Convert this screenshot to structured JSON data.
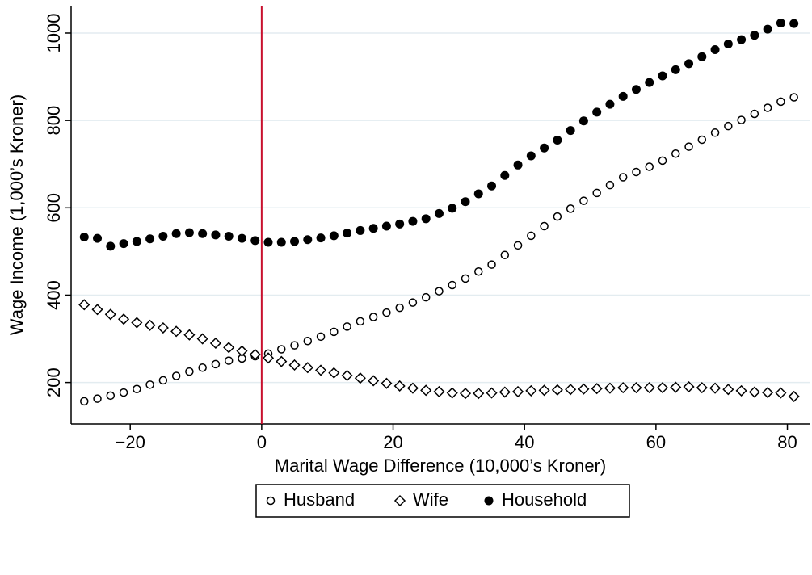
{
  "chart_data": {
    "type": "scatter",
    "x_label": "Marital Wage Difference (10,000’s Kroner)",
    "y_label": "Wage Income (1,000’s Kroner)",
    "x": [
      -27,
      -25,
      -23,
      -21,
      -19,
      -17,
      -15,
      -13,
      -11,
      -9,
      -7,
      -5,
      -3,
      -1,
      1,
      3,
      5,
      7,
      9,
      11,
      13,
      15,
      17,
      19,
      21,
      23,
      25,
      27,
      29,
      31,
      33,
      35,
      37,
      39,
      41,
      43,
      45,
      47,
      49,
      51,
      53,
      55,
      57,
      59,
      61,
      63,
      65,
      67,
      69,
      71,
      73,
      75,
      77,
      79,
      81
    ],
    "series": [
      {
        "name": "Husband",
        "color": "#000000",
        "marker": "open-circle",
        "values": [
          157,
          163,
          170,
          177,
          185,
          195,
          205,
          215,
          225,
          234,
          242,
          250,
          255,
          260,
          266,
          276,
          285,
          295,
          305,
          316,
          328,
          340,
          350,
          360,
          371,
          383,
          395,
          409,
          423,
          438,
          454,
          470,
          492,
          514,
          536,
          558,
          580,
          598,
          616,
          634,
          652,
          670,
          682,
          694,
          708,
          724,
          740,
          756,
          772,
          787,
          801,
          815,
          829,
          843,
          853
        ]
      },
      {
        "name": "Wife",
        "color": "#000000",
        "marker": "open-diamond",
        "values": [
          378,
          367,
          356,
          345,
          337,
          331,
          325,
          317,
          309,
          300,
          290,
          280,
          272,
          264,
          256,
          248,
          240,
          234,
          228,
          222,
          216,
          210,
          204,
          198,
          192,
          187,
          182,
          179,
          176,
          175,
          175,
          176,
          178,
          179,
          181,
          182,
          183,
          184,
          185,
          186,
          187,
          188,
          188,
          188,
          188,
          189,
          190,
          188,
          187,
          184,
          181,
          178,
          177,
          176,
          168
        ]
      },
      {
        "name": "Household",
        "color": "#000000",
        "marker": "filled-circle",
        "values": [
          533,
          530,
          512,
          518,
          523,
          529,
          535,
          541,
          543,
          541,
          538,
          535,
          530,
          525,
          521,
          521,
          523,
          527,
          531,
          536,
          542,
          548,
          553,
          558,
          563,
          569,
          575,
          587,
          599,
          614,
          632,
          650,
          674,
          698,
          719,
          737,
          755,
          777,
          799,
          819,
          837,
          855,
          871,
          887,
          902,
          916,
          930,
          946,
          962,
          975,
          985,
          995,
          1009,
          1023,
          1022
        ]
      }
    ],
    "xlim": [
      -29,
      83.5
    ],
    "ylim": [
      105,
      1061
    ],
    "xticks": [
      {
        "value": -20,
        "label": "−20"
      },
      0,
      20,
      40,
      60,
      80
    ],
    "yticks": [
      200,
      400,
      600,
      800,
      1000
    ],
    "grid": true,
    "vline": {
      "x": 0,
      "color": "#c8102e"
    },
    "legend": "bottom"
  }
}
